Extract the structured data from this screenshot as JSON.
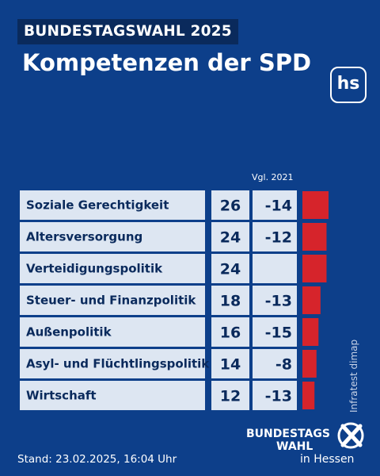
{
  "header": {
    "kicker": "BUNDESTAGSWAHL 2025",
    "title": "Kompetenzen der SPD",
    "logo_text": "hs"
  },
  "table": {
    "change_header": "Vgl. 2021"
  },
  "chart_data": {
    "type": "bar",
    "title": "Kompetenzen der SPD",
    "categories": [
      "Soziale Gerechtigkeit",
      "Altersversorgung",
      "Verteidigungspolitik",
      "Steuer- und Finanzpolitik",
      "Außenpolitik",
      "Asyl- und Flüchtlingspolitik",
      "Wirtschaft"
    ],
    "values": [
      26,
      24,
      24,
      18,
      16,
      14,
      12
    ],
    "changes": [
      "-14",
      "-12",
      "",
      "-13",
      "-15",
      "-8",
      "-13"
    ],
    "series": [
      {
        "values": [
          26,
          24,
          24,
          18,
          16,
          14,
          12
        ]
      }
    ],
    "xlim": [
      0,
      26
    ],
    "grid": false,
    "legend": "none"
  },
  "colors": {
    "background": "#0d3f8a",
    "cell": "#dde6f2",
    "text": "#0a2a5c",
    "bar": "#d6242b"
  },
  "footer": {
    "source": "Infratest dimap",
    "stand": "Stand: 23.02.2025, 16:04 Uhr",
    "brand_line1": "BUNDESTAGS",
    "brand_line2": "WAHL",
    "brand_line3": "in Hessen",
    "brand_icon": "ballot-cross-icon"
  }
}
